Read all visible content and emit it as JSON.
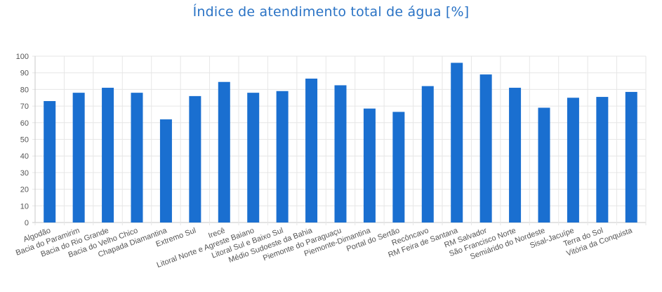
{
  "chart_data": {
    "type": "bar",
    "title": "Índice de atendimento total de água [%]",
    "xlabel": "",
    "ylabel": "",
    "ylim": [
      0,
      100
    ],
    "yticks": [
      0,
      10,
      20,
      30,
      40,
      50,
      60,
      70,
      80,
      90,
      100
    ],
    "grid": true,
    "bar_color": "#1a6fd0",
    "categories": [
      "Algodão",
      "Bacia do Paramirim",
      "Bacia do Rio Grande",
      "Bacia do Velho Chico",
      "Chapada Diamantina",
      "Extremo Sul",
      "Irecê",
      "Litoral Norte e Agreste Baiano",
      "Litoral Sul e Baixo Sul",
      "Médio Sudoeste da Bahia",
      "Piemonte do Paraguaçu",
      "Piemonte-Dimantina",
      "Portal do Sertão",
      "Recôncavo",
      "RM Feira de Santana",
      "RM Salvador",
      "São Francisco Norte",
      "Semiárido do Nordeste",
      "Sisal-Jacuípe",
      "Terra do Sol",
      "Vitória da Conquista"
    ],
    "values": [
      73,
      78,
      81,
      78,
      62,
      76,
      84.5,
      78,
      79,
      86.5,
      82.5,
      68.5,
      66.5,
      82,
      96,
      89,
      81,
      69,
      75,
      75.5,
      78.5
    ]
  }
}
